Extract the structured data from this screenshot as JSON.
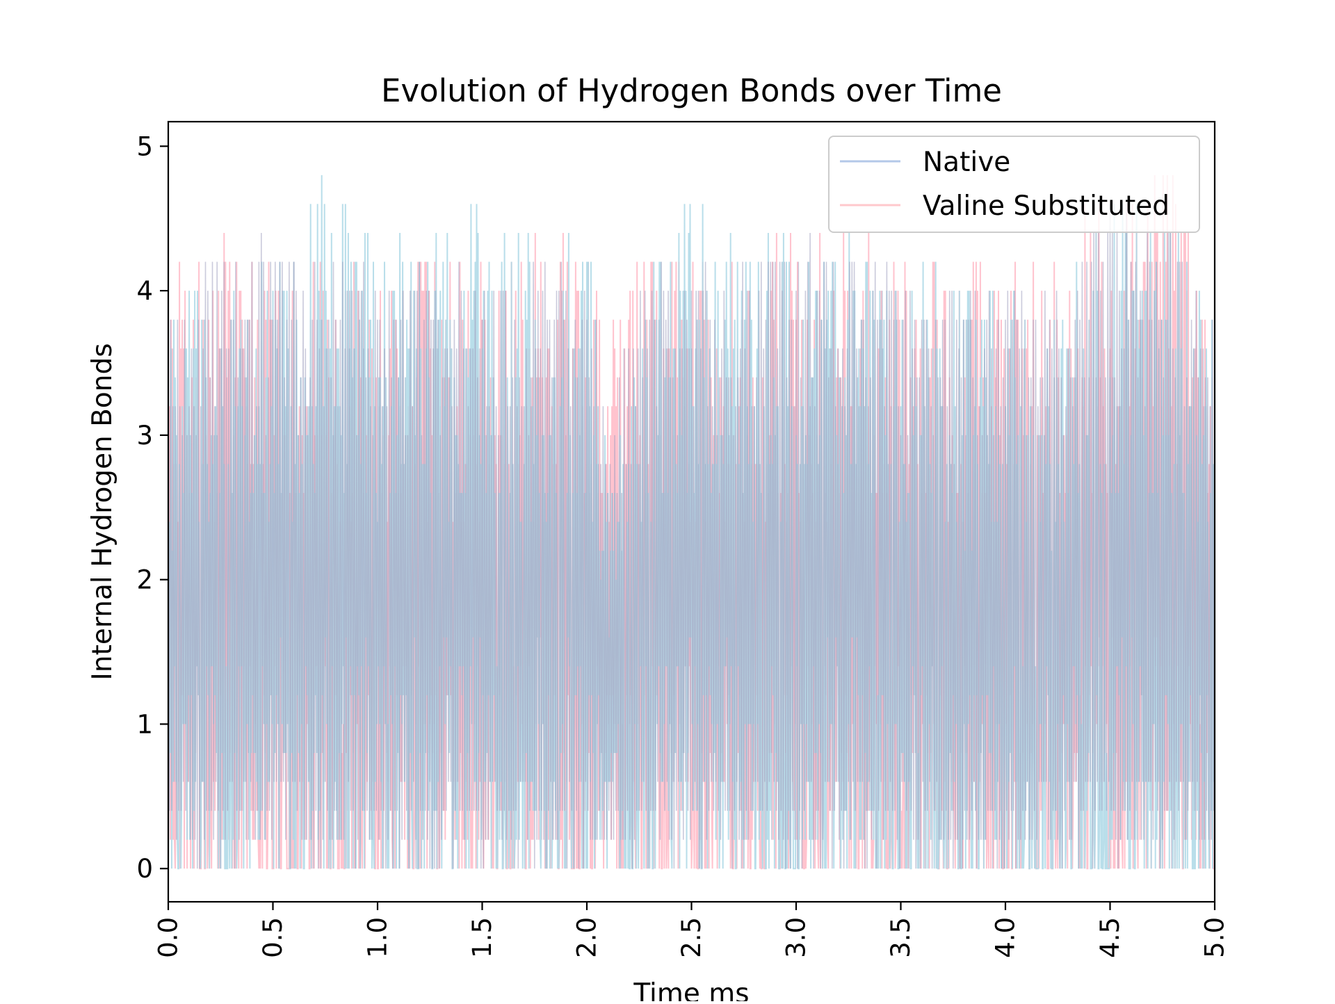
{
  "chart_data": {
    "type": "line",
    "title": "Evolution of Hydrogen Bonds over Time",
    "xlabel": "Time ms",
    "ylabel": "Internal Hydrogen Bonds",
    "xlim": [
      0.0,
      5.0
    ],
    "ylim": [
      -0.23,
      5.17
    ],
    "xticks": [
      "0.0",
      "0.5",
      "1.0",
      "1.5",
      "2.0",
      "2.5",
      "3.0",
      "3.5",
      "4.0",
      "4.5",
      "5.0"
    ],
    "yticks": [
      "0",
      "1",
      "2",
      "3",
      "4",
      "5"
    ],
    "grid": false,
    "legend_position": "top-right",
    "series": [
      {
        "name": "Native",
        "color": "#add8e6",
        "legend_color": "#b4c8e8",
        "description_of_values": "rapidly fluctuating 0 to ~4.9; dense band ~2.6-4.2 upper envelope, dips to 0 frequently",
        "x": [
          0.0,
          0.25,
          0.5,
          0.75,
          1.0,
          1.25,
          1.5,
          1.75,
          2.0,
          2.1,
          2.25,
          2.5,
          2.75,
          3.0,
          3.25,
          3.5,
          3.75,
          4.0,
          4.25,
          4.5,
          4.75,
          5.0
        ],
        "upper": [
          3.9,
          4.4,
          4.3,
          4.9,
          4.4,
          4.3,
          4.7,
          4.3,
          4.7,
          3.0,
          4.2,
          4.6,
          4.4,
          4.3,
          4.6,
          4.3,
          4.1,
          4.2,
          4.1,
          4.7,
          4.6,
          4.1
        ],
        "lower": [
          0.0,
          0.0,
          0.0,
          0.0,
          0.0,
          0.0,
          0.0,
          0.0,
          0.0,
          0.0,
          0.0,
          0.0,
          0.0,
          0.0,
          0.0,
          0.0,
          0.0,
          0.0,
          0.0,
          0.0,
          0.0,
          0.0
        ]
      },
      {
        "name": "Valine Substituted",
        "color": "#ffc0cb",
        "legend_color": "#ffc8cc",
        "description_of_values": "rapidly fluctuating 0 to ~4.9; similar envelope with higher peaks near 4.3-5.0 ms",
        "x": [
          0.0,
          0.25,
          0.5,
          0.75,
          1.0,
          1.25,
          1.5,
          1.75,
          2.0,
          2.1,
          2.25,
          2.5,
          2.75,
          3.0,
          3.25,
          3.5,
          3.75,
          4.0,
          4.25,
          4.5,
          4.75,
          5.0
        ],
        "upper": [
          4.1,
          4.4,
          4.4,
          4.2,
          4.2,
          4.3,
          4.2,
          4.4,
          4.3,
          3.8,
          4.5,
          4.3,
          4.2,
          4.5,
          4.4,
          4.3,
          4.2,
          4.3,
          4.4,
          4.7,
          4.9,
          4.2
        ],
        "lower": [
          0.0,
          0.0,
          0.0,
          0.0,
          0.0,
          0.0,
          0.0,
          0.0,
          0.0,
          0.0,
          0.0,
          0.0,
          0.0,
          0.0,
          0.0,
          0.0,
          0.0,
          0.0,
          0.0,
          0.0,
          0.0,
          0.0
        ]
      }
    ]
  }
}
